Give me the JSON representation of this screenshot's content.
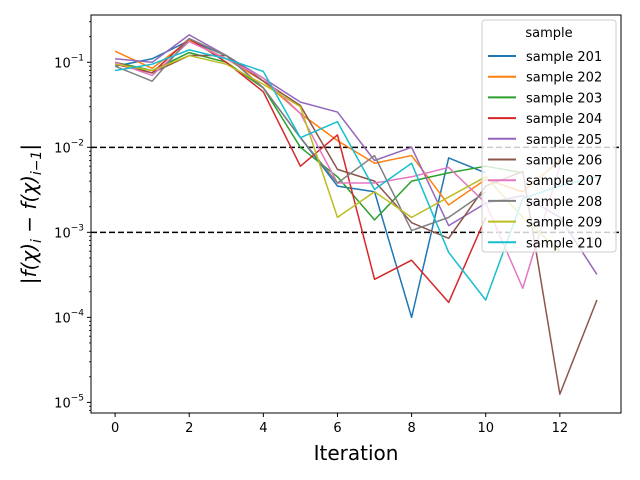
{
  "chart_data": {
    "type": "line",
    "xlabel": "Iteration",
    "ylabel": "|f(χ)_i − f(χ)_{i−1}|",
    "yscale": "log",
    "xlim": [
      -0.65,
      13.65
    ],
    "ylim": [
      7.5e-06,
      0.36
    ],
    "x_ticks": [
      0,
      2,
      4,
      6,
      8,
      10,
      12
    ],
    "x_tick_labels": [
      "0",
      "2",
      "4",
      "6",
      "8",
      "10",
      "12"
    ],
    "y_ticks": [
      1e-05,
      0.0001,
      0.001,
      0.01,
      0.1
    ],
    "y_tick_labels": [
      "10",
      "10",
      "10",
      "10",
      "10"
    ],
    "y_tick_exponents": [
      "−5",
      "−4",
      "−3",
      "−2",
      "−1"
    ],
    "hlines": [
      0.01,
      0.001
    ],
    "grid": false,
    "legend": {
      "title": "sample",
      "placement": "top-right"
    },
    "series": [
      {
        "name": "sample 201",
        "color": "#1f77b4",
        "x": [
          0,
          1,
          2,
          3,
          4,
          5,
          6,
          7,
          8,
          9,
          10
        ],
        "y": [
          0.09,
          0.11,
          0.18,
          0.12,
          0.05,
          0.013,
          0.0035,
          0.003,
          0.0001,
          0.0075,
          0.005
        ]
      },
      {
        "name": "sample 202",
        "color": "#ff7f0e",
        "x": [
          0,
          1,
          2,
          3,
          4,
          5,
          6,
          7,
          8,
          9,
          10,
          11,
          12
        ],
        "y": [
          0.135,
          0.085,
          0.18,
          0.11,
          0.06,
          0.025,
          0.012,
          0.0065,
          0.008,
          0.0021,
          0.0042,
          0.003,
          0.007
        ]
      },
      {
        "name": "sample 203",
        "color": "#2ca02c",
        "x": [
          0,
          1,
          2,
          3,
          4,
          5,
          6,
          7,
          8,
          9,
          10,
          11
        ],
        "y": [
          0.1,
          0.08,
          0.13,
          0.1,
          0.05,
          0.01,
          0.0045,
          0.0014,
          0.004,
          0.005,
          0.006,
          0.005
        ]
      },
      {
        "name": "sample 204",
        "color": "#d62728",
        "x": [
          0,
          1,
          2,
          3,
          4,
          5,
          6,
          7,
          8,
          9,
          10
        ],
        "y": [
          0.095,
          0.075,
          0.19,
          0.1,
          0.045,
          0.006,
          0.014,
          0.00028,
          0.00047,
          0.00015,
          0.0015
        ]
      },
      {
        "name": "sample 205",
        "color": "#9467bd",
        "x": [
          0,
          1,
          2,
          3,
          4,
          5,
          6,
          7,
          8,
          9,
          10,
          11,
          12,
          13
        ],
        "y": [
          0.11,
          0.1,
          0.21,
          0.12,
          0.065,
          0.034,
          0.026,
          0.007,
          0.01,
          0.0012,
          0.0022,
          0.0027,
          0.0015,
          0.00032
        ]
      },
      {
        "name": "sample 206",
        "color": "#8c564b",
        "x": [
          0,
          1,
          2,
          3,
          4,
          5,
          6,
          7,
          8,
          9,
          10,
          11,
          12,
          13
        ],
        "y": [
          0.1,
          0.075,
          0.12,
          0.12,
          0.06,
          0.031,
          0.0055,
          0.004,
          0.0013,
          0.00085,
          0.0035,
          0.0052,
          1.25e-05,
          0.00016
        ]
      },
      {
        "name": "sample 207",
        "color": "#e377c2",
        "x": [
          0,
          1,
          2,
          3,
          4,
          5,
          6,
          7,
          8,
          9,
          10,
          11,
          12
        ],
        "y": [
          0.1,
          0.07,
          0.175,
          0.11,
          0.065,
          0.025,
          0.0038,
          0.0038,
          0.0045,
          0.0058,
          0.0022,
          0.00022,
          0.006
        ]
      },
      {
        "name": "sample 208",
        "color": "#7f7f7f",
        "x": [
          0,
          1,
          2,
          3,
          4,
          5,
          6,
          7,
          8,
          9,
          10
        ],
        "y": [
          0.09,
          0.06,
          0.19,
          0.12,
          0.05,
          0.013,
          0.0038,
          0.008,
          0.00105,
          0.0015,
          0.003
        ]
      },
      {
        "name": "sample 209",
        "color": "#bcbd22",
        "x": [
          0,
          1,
          2,
          3,
          4,
          5,
          6,
          7,
          8,
          9,
          10,
          11,
          12
        ],
        "y": [
          0.095,
          0.08,
          0.12,
          0.095,
          0.055,
          0.03,
          0.0015,
          0.003,
          0.0015,
          0.0026,
          0.0045,
          0.0015,
          0.0006
        ]
      },
      {
        "name": "sample 210",
        "color": "#17becf",
        "x": [
          0,
          1,
          2,
          3,
          4,
          5,
          6,
          7,
          8,
          9,
          10,
          11,
          12,
          13
        ],
        "y": [
          0.08,
          0.095,
          0.14,
          0.11,
          0.078,
          0.013,
          0.02,
          0.0032,
          0.0065,
          0.00058,
          0.00016,
          0.0025,
          0.0035,
          0.0045
        ]
      }
    ]
  }
}
